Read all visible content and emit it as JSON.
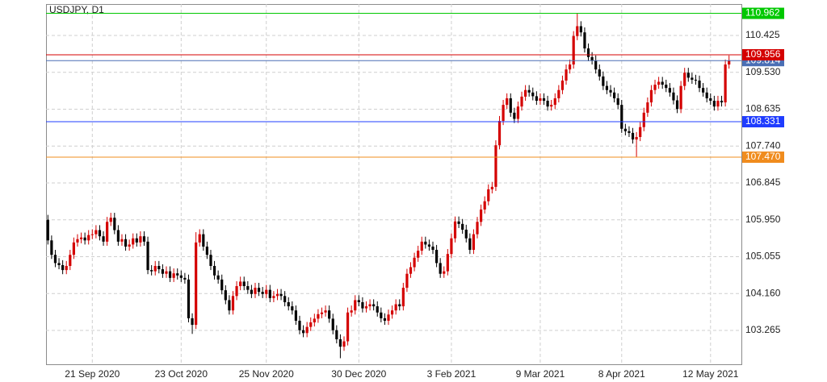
{
  "chart_data": {
    "type": "candlestick",
    "title": "USDJPY, D1",
    "categories": [
      null,
      null,
      null,
      null,
      null,
      null,
      null,
      null,
      null,
      null,
      null,
      null,
      "21 Sep 2020",
      null,
      null,
      null,
      null,
      null,
      null,
      null,
      null,
      null,
      null,
      null,
      null,
      null,
      null,
      null,
      null,
      null,
      null,
      null,
      null,
      null,
      null,
      null,
      "23 Oct 2020",
      null,
      null,
      null,
      null,
      null,
      null,
      null,
      null,
      null,
      null,
      null,
      null,
      null,
      null,
      null,
      null,
      null,
      null,
      null,
      null,
      null,
      null,
      "25 Nov 2020",
      null,
      null,
      null,
      null,
      null,
      null,
      null,
      null,
      null,
      null,
      null,
      null,
      null,
      null,
      null,
      null,
      null,
      null,
      null,
      null,
      null,
      null,
      null,
      null,
      "30 Dec 2020",
      null,
      null,
      null,
      null,
      null,
      null,
      null,
      null,
      null,
      null,
      null,
      null,
      null,
      null,
      null,
      null,
      null,
      null,
      null,
      null,
      null,
      null,
      null,
      null,
      "3 Feb 2021",
      null,
      null,
      null,
      null,
      null,
      null,
      null,
      null,
      null,
      null,
      null,
      null,
      null,
      null,
      null,
      null,
      null,
      null,
      null,
      null,
      null,
      null,
      null,
      "9 Mar 2021",
      null,
      null,
      null,
      null,
      null,
      null,
      null,
      null,
      null,
      null,
      null,
      null,
      null,
      null,
      null,
      null,
      null,
      null,
      null,
      null,
      null,
      "8 Apr 2021",
      null,
      null,
      null,
      null,
      null,
      null,
      null,
      null,
      null,
      null,
      null,
      null,
      null,
      null,
      null,
      null,
      null,
      null,
      null,
      null,
      null,
      null,
      null,
      "12 May 2021",
      null,
      null,
      null,
      null,
      null
    ],
    "open": [
      105.95,
      105.45,
      105.1,
      104.9,
      104.85,
      104.73,
      104.83,
      105.1,
      105.4,
      105.48,
      105.52,
      105.45,
      105.58,
      105.6,
      105.7,
      105.55,
      105.42,
      105.9,
      106.0,
      105.7,
      105.42,
      105.48,
      105.3,
      105.35,
      105.5,
      105.4,
      105.55,
      105.42,
      104.73,
      104.7,
      104.83,
      104.75,
      104.64,
      104.7,
      104.54,
      104.65,
      104.6,
      104.54,
      104.5,
      103.56,
      103.4,
      105.4,
      105.6,
      105.3,
      105.1,
      104.83,
      104.6,
      104.5,
      104.24,
      104.0,
      103.75,
      104.1,
      104.34,
      104.45,
      104.34,
      104.25,
      104.15,
      104.3,
      104.2,
      104.15,
      104.25,
      104.05,
      104.1,
      104.15,
      104.1,
      103.95,
      103.85,
      103.75,
      103.5,
      103.27,
      103.2,
      103.35,
      103.46,
      103.55,
      103.66,
      103.7,
      103.75,
      103.55,
      103.27,
      103.05,
      102.87,
      103.0,
      103.7,
      103.75,
      104.0,
      103.95,
      103.8,
      103.85,
      103.9,
      103.85,
      103.7,
      103.56,
      103.5,
      103.65,
      103.75,
      103.9,
      103.85,
      104.3,
      104.64,
      104.8,
      105.03,
      105.2,
      105.42,
      105.35,
      105.3,
      105.22,
      104.9,
      104.64,
      104.7,
      105.12,
      105.5,
      105.91,
      105.85,
      105.71,
      105.5,
      105.22,
      105.6,
      105.9,
      106.2,
      106.4,
      106.69,
      106.75,
      107.76,
      108.35,
      108.74,
      108.9,
      108.55,
      108.4,
      108.7,
      108.94,
      109.1,
      109.04,
      108.95,
      108.84,
      108.9,
      108.84,
      108.7,
      108.74,
      108.9,
      109.1,
      109.33,
      109.6,
      109.72,
      110.41,
      110.65,
      110.5,
      110.11,
      109.9,
      109.82,
      109.6,
      109.43,
      109.2,
      109.1,
      109.04,
      108.9,
      108.74,
      108.16,
      108.1,
      108.06,
      107.9,
      107.96,
      108.2,
      108.55,
      108.8,
      109.1,
      109.23,
      109.3,
      109.23,
      109.15,
      109.04,
      108.85,
      108.64,
      109.2,
      109.52,
      109.4,
      109.35,
      109.33,
      109.15,
      109.04,
      108.9,
      108.84,
      108.7,
      108.84,
      108.8,
      109.72
    ],
    "high": [
      106.07,
      105.57,
      105.22,
      105.02,
      104.97,
      104.95,
      105.22,
      105.52,
      105.6,
      105.64,
      105.64,
      105.7,
      105.72,
      105.82,
      105.82,
      105.67,
      106.02,
      106.12,
      106.12,
      105.82,
      105.6,
      105.6,
      105.47,
      105.62,
      105.62,
      105.67,
      105.67,
      105.54,
      104.85,
      104.95,
      104.95,
      104.87,
      104.82,
      104.82,
      104.77,
      104.77,
      104.72,
      104.66,
      104.62,
      103.68,
      105.65,
      105.72,
      105.72,
      105.42,
      105.22,
      104.95,
      104.72,
      104.62,
      104.36,
      104.12,
      104.22,
      104.46,
      104.57,
      104.57,
      104.46,
      104.37,
      104.42,
      104.42,
      104.32,
      104.37,
      104.37,
      104.22,
      104.27,
      104.27,
      104.22,
      104.07,
      103.97,
      103.87,
      103.62,
      103.39,
      103.47,
      103.58,
      103.67,
      103.78,
      103.82,
      103.87,
      103.87,
      103.67,
      103.39,
      103.17,
      103.12,
      103.82,
      103.87,
      104.12,
      104.12,
      104.07,
      103.97,
      104.02,
      104.02,
      103.97,
      103.82,
      103.68,
      103.77,
      103.87,
      104.02,
      104.02,
      104.42,
      104.76,
      104.92,
      105.15,
      105.32,
      105.54,
      105.54,
      105.47,
      105.42,
      105.34,
      105.02,
      104.82,
      105.24,
      105.62,
      106.03,
      106.03,
      105.97,
      105.83,
      105.62,
      105.72,
      106.02,
      106.32,
      106.52,
      106.81,
      106.87,
      107.88,
      108.47,
      108.86,
      109.02,
      109.02,
      108.67,
      108.82,
      109.06,
      109.22,
      109.22,
      109.16,
      109.07,
      109.02,
      109.02,
      108.96,
      108.86,
      109.02,
      109.22,
      109.45,
      109.72,
      109.84,
      110.53,
      110.97,
      110.77,
      110.62,
      110.23,
      110.02,
      109.94,
      109.72,
      109.55,
      109.32,
      109.22,
      109.16,
      109.02,
      108.86,
      108.28,
      108.22,
      108.18,
      108.08,
      108.32,
      108.67,
      108.92,
      109.22,
      109.35,
      109.42,
      109.42,
      109.35,
      109.27,
      109.16,
      108.97,
      109.32,
      109.64,
      109.64,
      109.52,
      109.47,
      109.45,
      109.27,
      109.16,
      109.02,
      108.96,
      108.96,
      108.96,
      109.84,
      109.94
    ],
    "low": [
      105.35,
      105.0,
      104.8,
      104.75,
      104.63,
      104.63,
      104.73,
      105.0,
      105.3,
      105.38,
      105.35,
      105.35,
      105.48,
      105.5,
      105.45,
      105.32,
      105.32,
      105.8,
      105.6,
      105.32,
      105.32,
      105.2,
      105.2,
      105.25,
      105.3,
      105.3,
      105.32,
      104.63,
      104.6,
      104.6,
      104.65,
      104.54,
      104.54,
      104.44,
      104.44,
      104.5,
      104.44,
      104.4,
      103.46,
      103.18,
      103.3,
      105.3,
      105.2,
      105.0,
      104.73,
      104.5,
      104.4,
      104.14,
      103.9,
      103.65,
      103.65,
      104.0,
      104.24,
      104.24,
      104.15,
      104.05,
      104.05,
      104.1,
      104.05,
      104.05,
      103.95,
      103.95,
      104.0,
      104.0,
      103.85,
      103.75,
      103.65,
      103.4,
      103.17,
      103.1,
      103.1,
      103.25,
      103.36,
      103.45,
      103.56,
      103.6,
      103.45,
      103.17,
      102.95,
      102.59,
      102.77,
      102.9,
      103.6,
      103.65,
      103.85,
      103.7,
      103.7,
      103.75,
      103.75,
      103.6,
      103.46,
      103.4,
      103.4,
      103.55,
      103.65,
      103.75,
      103.75,
      104.2,
      104.54,
      104.7,
      104.93,
      105.1,
      105.25,
      105.2,
      105.12,
      104.8,
      104.54,
      104.54,
      104.6,
      105.02,
      105.4,
      105.75,
      105.61,
      105.4,
      105.12,
      105.12,
      105.5,
      105.8,
      106.1,
      106.3,
      106.59,
      106.65,
      107.66,
      108.25,
      108.64,
      108.45,
      108.3,
      108.3,
      108.6,
      108.84,
      108.94,
      108.85,
      108.74,
      108.74,
      108.74,
      108.6,
      108.6,
      108.64,
      108.8,
      109.0,
      109.23,
      109.5,
      109.62,
      110.31,
      110.4,
      110.01,
      109.8,
      109.72,
      109.5,
      109.33,
      109.1,
      109.0,
      108.94,
      108.8,
      108.64,
      108.06,
      108.0,
      107.96,
      107.8,
      107.48,
      107.86,
      108.1,
      108.45,
      108.7,
      109.0,
      109.13,
      109.13,
      109.05,
      108.94,
      108.75,
      108.54,
      108.54,
      109.1,
      109.3,
      109.25,
      109.23,
      109.05,
      108.94,
      108.8,
      108.74,
      108.6,
      108.6,
      108.7,
      108.7,
      109.62
    ],
    "close": [
      105.45,
      105.1,
      104.9,
      104.85,
      104.73,
      104.83,
      105.1,
      105.4,
      105.48,
      105.52,
      105.45,
      105.58,
      105.6,
      105.7,
      105.55,
      105.42,
      105.9,
      106.0,
      105.7,
      105.42,
      105.48,
      105.3,
      105.35,
      105.5,
      105.4,
      105.55,
      105.42,
      104.73,
      104.7,
      104.83,
      104.75,
      104.64,
      104.7,
      104.54,
      104.65,
      104.6,
      104.54,
      104.5,
      103.56,
      103.4,
      105.4,
      105.6,
      105.3,
      105.1,
      104.83,
      104.6,
      104.5,
      104.24,
      104.0,
      103.75,
      104.1,
      104.34,
      104.45,
      104.34,
      104.25,
      104.15,
      104.3,
      104.2,
      104.15,
      104.25,
      104.05,
      104.1,
      104.15,
      104.1,
      103.95,
      103.85,
      103.75,
      103.5,
      103.27,
      103.2,
      103.35,
      103.46,
      103.55,
      103.66,
      103.7,
      103.75,
      103.55,
      103.27,
      103.05,
      102.87,
      103.0,
      103.7,
      103.75,
      104.0,
      103.95,
      103.8,
      103.85,
      103.9,
      103.85,
      103.7,
      103.56,
      103.5,
      103.65,
      103.75,
      103.9,
      103.85,
      104.3,
      104.64,
      104.8,
      105.03,
      105.2,
      105.42,
      105.35,
      105.3,
      105.22,
      104.9,
      104.64,
      104.7,
      105.12,
      105.5,
      105.91,
      105.85,
      105.71,
      105.5,
      105.22,
      105.6,
      105.9,
      106.2,
      106.4,
      106.69,
      106.75,
      107.76,
      108.35,
      108.74,
      108.9,
      108.55,
      108.4,
      108.7,
      108.94,
      109.1,
      109.04,
      108.95,
      108.84,
      108.9,
      108.84,
      108.7,
      108.74,
      108.9,
      109.1,
      109.33,
      109.6,
      109.72,
      110.41,
      110.65,
      110.5,
      110.11,
      109.9,
      109.82,
      109.6,
      109.43,
      109.2,
      109.1,
      109.04,
      108.9,
      108.74,
      108.16,
      108.1,
      108.06,
      107.9,
      107.96,
      108.2,
      108.55,
      108.8,
      109.1,
      109.23,
      109.3,
      109.23,
      109.15,
      109.04,
      108.85,
      108.64,
      109.2,
      109.52,
      109.4,
      109.35,
      109.33,
      109.15,
      109.04,
      108.9,
      108.84,
      108.7,
      108.84,
      108.8,
      109.72,
      109.82
    ],
    "up_color": "#d40000",
    "down_color": "#000000",
    "ylim": [
      102.443,
      111.188
    ],
    "yticks": [
      {
        "value": 103.265,
        "label": "103.265"
      },
      {
        "value": 104.16,
        "label": "104.160"
      },
      {
        "value": 105.055,
        "label": "105.055"
      },
      {
        "value": 105.95,
        "label": "105.950"
      },
      {
        "value": 106.845,
        "label": "106.845"
      },
      {
        "value": 107.74,
        "label": "107.740"
      },
      {
        "value": 108.635,
        "label": "108.635"
      },
      {
        "value": 109.53,
        "label": "109.530"
      },
      {
        "value": 110.425,
        "label": "110.425"
      }
    ],
    "grid": true,
    "price_lines": [
      {
        "value": 110.962,
        "color": "#00c800"
      },
      {
        "value": 109.814,
        "color": "#4a6fb5"
      },
      {
        "value": 109.956,
        "color": "#d40000"
      },
      {
        "value": 108.331,
        "color": "#1f3cff"
      },
      {
        "value": 107.47,
        "label": "107.470",
        "color": "#f08c1e"
      }
    ]
  }
}
